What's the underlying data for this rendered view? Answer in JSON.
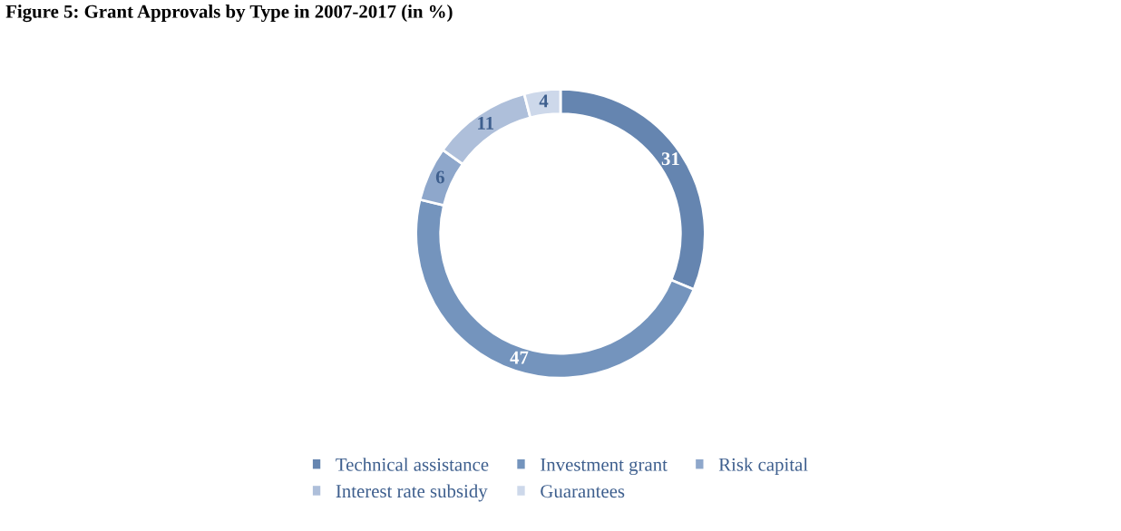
{
  "chart_data": {
    "type": "donut",
    "title": "Figure 5: Grant Approvals by Type in 2007-2017 (in %)",
    "categories": [
      "Technical assistance",
      "Investment grant",
      "Risk capital",
      "Interest rate subsidy",
      "Guarantees"
    ],
    "values": [
      31,
      47,
      6,
      11,
      4
    ],
    "colors": [
      "#6585b0",
      "#7494bd",
      "#8ea7cb",
      "#aebfda",
      "#cdd8ea"
    ],
    "data_labels": true,
    "legend": "bottom"
  }
}
